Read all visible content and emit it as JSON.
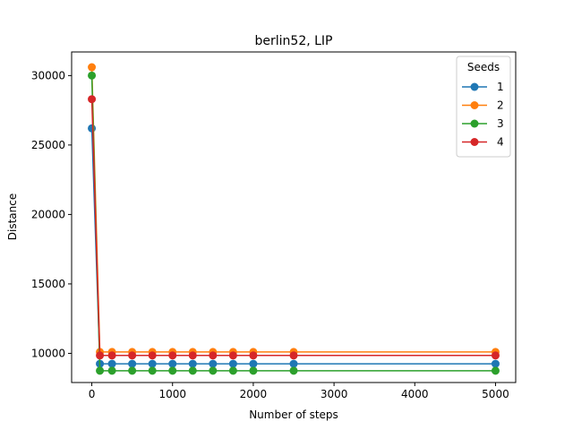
{
  "chart_data": {
    "type": "line",
    "title": "berlin52, LIP",
    "xlabel": "Number of steps",
    "ylabel": "Distance",
    "xlim": [
      -250,
      5250
    ],
    "ylim": [
      7900,
      31700
    ],
    "xticks": [
      0,
      1000,
      2000,
      3000,
      4000,
      5000
    ],
    "yticks": [
      10000,
      15000,
      20000,
      25000,
      30000
    ],
    "x": [
      0,
      100,
      250,
      500,
      750,
      1000,
      1250,
      1500,
      1750,
      2000,
      2500,
      5000
    ],
    "legend": {
      "title": "Seeds",
      "position": "top-right"
    },
    "grid": false,
    "series": [
      {
        "name": "1",
        "color": "#1f77b4",
        "values": [
          26200,
          9250,
          9250,
          9250,
          9250,
          9250,
          9250,
          9250,
          9250,
          9250,
          9250,
          9250
        ]
      },
      {
        "name": "2",
        "color": "#ff7f0e",
        "values": [
          30600,
          10100,
          10100,
          10100,
          10100,
          10100,
          10100,
          10100,
          10100,
          10100,
          10100,
          10100
        ]
      },
      {
        "name": "3",
        "color": "#2ca02c",
        "values": [
          30000,
          8750,
          8750,
          8750,
          8750,
          8750,
          8750,
          8750,
          8750,
          8750,
          8750,
          8750
        ]
      },
      {
        "name": "4",
        "color": "#d62728",
        "values": [
          28300,
          9850,
          9850,
          9850,
          9850,
          9850,
          9850,
          9850,
          9850,
          9850,
          9850,
          9850
        ]
      }
    ]
  }
}
